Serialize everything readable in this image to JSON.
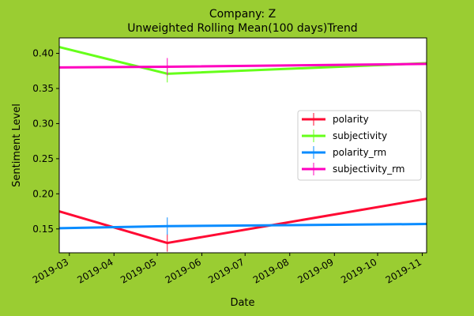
{
  "chart_data": {
    "type": "line",
    "title": "Company: Z",
    "subtitle": "Unweighted Rolling Mean(100 days)Trend",
    "xlabel": "Date",
    "ylabel": "Sentiment Level",
    "x_ticks": [
      "2019-03",
      "2019-04",
      "2019-05",
      "2019-06",
      "2019-07",
      "2019-08",
      "2019-09",
      "2019-10",
      "2019-11"
    ],
    "xlim": [
      "2019-02-22",
      "2019-11-04"
    ],
    "y_ticks": [
      "0.15",
      "0.20",
      "0.25",
      "0.30",
      "0.35",
      "0.40"
    ],
    "ylim": [
      0.116,
      0.422
    ],
    "grid": false,
    "legend_position": "center-right",
    "background_color": "#9acd32",
    "axes_color": "#ffffff",
    "x": [
      "2019-02-22",
      "2019-05-08",
      "2019-11-04"
    ],
    "series": [
      {
        "name": "polarity",
        "color": "#ff0a33",
        "values": [
          0.175,
          0.13,
          0.193
        ]
      },
      {
        "name": "subjectivity",
        "color": "#66ff1a",
        "values": [
          0.409,
          0.371,
          0.386
        ]
      },
      {
        "name": "polarity_rm",
        "color": "#0a8cff",
        "values": [
          0.151,
          0.154,
          0.157
        ]
      },
      {
        "name": "subjectivity_rm",
        "color": "#ff00bf",
        "values": [
          0.38,
          0.381,
          0.385
        ]
      }
    ],
    "marker_x": "2019-05-08"
  }
}
